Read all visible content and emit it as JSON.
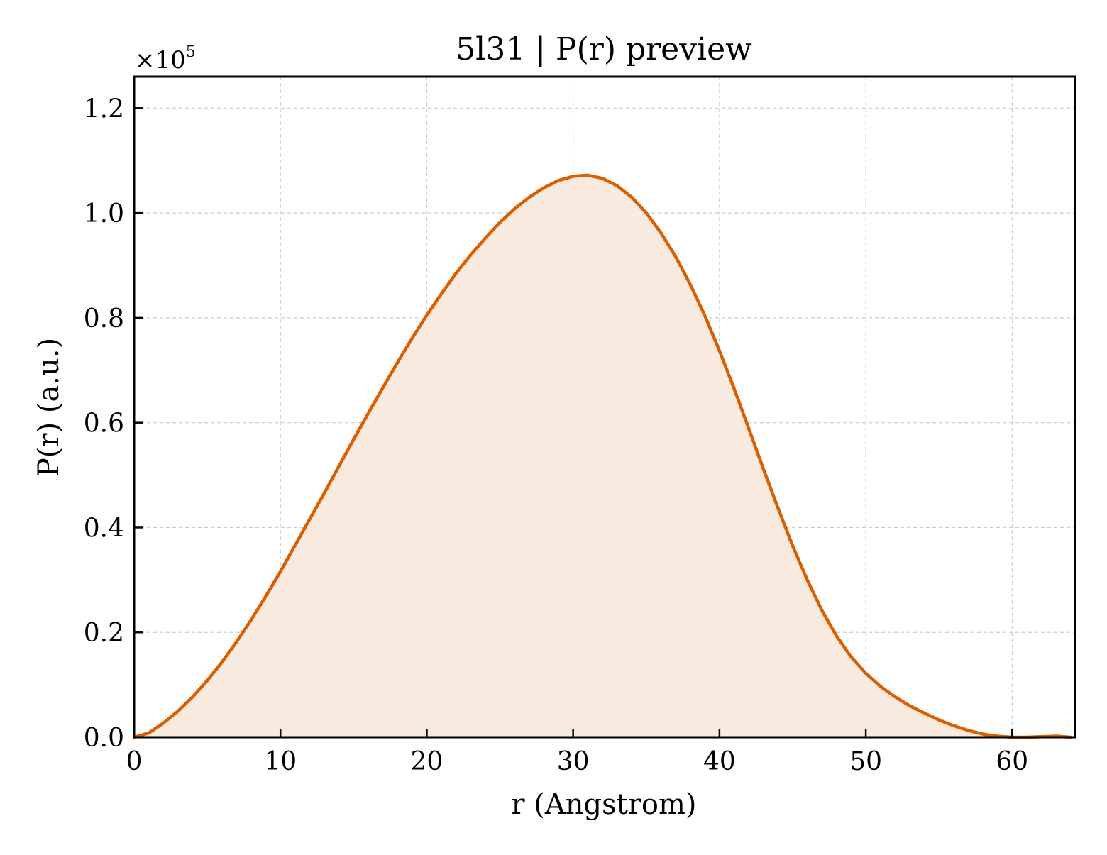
{
  "chart_data": {
    "type": "area",
    "title": "5l31 | P(r) preview",
    "xlabel": "r (Angstrom)",
    "ylabel": "P(r) (a.u.)",
    "y_multiplier": "×10",
    "y_multiplier_exp": "5",
    "xlim": [
      0,
      64.3
    ],
    "ylim": [
      0,
      1.26
    ],
    "y_scale_factor": 100000,
    "xticks": [
      0,
      10,
      20,
      30,
      40,
      50,
      60
    ],
    "yticks": [
      0.0,
      0.2,
      0.4,
      0.6,
      0.8,
      1.0,
      1.2
    ],
    "xtick_labels": [
      "0",
      "10",
      "20",
      "30",
      "40",
      "50",
      "60"
    ],
    "ytick_labels": [
      "0.0",
      "0.2",
      "0.4",
      "0.6",
      "0.8",
      "1.0",
      "1.2"
    ],
    "grid": true,
    "legend": "none",
    "line_color": "#d95f02",
    "fill_color": "#f8eadf",
    "x": [
      0,
      1,
      2,
      3,
      4,
      5,
      6,
      7,
      8,
      9,
      10,
      11,
      12,
      13,
      14,
      15,
      16,
      17,
      18,
      19,
      20,
      21,
      22,
      23,
      24,
      25,
      26,
      27,
      28,
      29,
      30,
      31,
      32,
      33,
      34,
      35,
      36,
      37,
      38,
      39,
      40,
      41,
      42,
      43,
      44,
      45,
      46,
      47,
      48,
      49,
      50,
      51,
      52,
      53,
      54,
      55,
      56,
      57,
      58,
      59,
      60,
      61,
      62,
      63,
      64
    ],
    "y": [
      0.0,
      0.008,
      0.027,
      0.05,
      0.077,
      0.108,
      0.143,
      0.182,
      0.224,
      0.269,
      0.316,
      0.366,
      0.416,
      0.466,
      0.517,
      0.568,
      0.618,
      0.667,
      0.715,
      0.761,
      0.805,
      0.846,
      0.885,
      0.92,
      0.952,
      0.982,
      1.008,
      1.03,
      1.048,
      1.062,
      1.07,
      1.072,
      1.066,
      1.052,
      1.03,
      1.0,
      0.962,
      0.917,
      0.864,
      0.804,
      0.737,
      0.665,
      0.589,
      0.512,
      0.437,
      0.365,
      0.3,
      0.242,
      0.193,
      0.153,
      0.122,
      0.097,
      0.077,
      0.06,
      0.046,
      0.033,
      0.022,
      0.013,
      0.006,
      0.002,
      0.0,
      0.0,
      0.001,
      0.002,
      0.0
    ]
  }
}
